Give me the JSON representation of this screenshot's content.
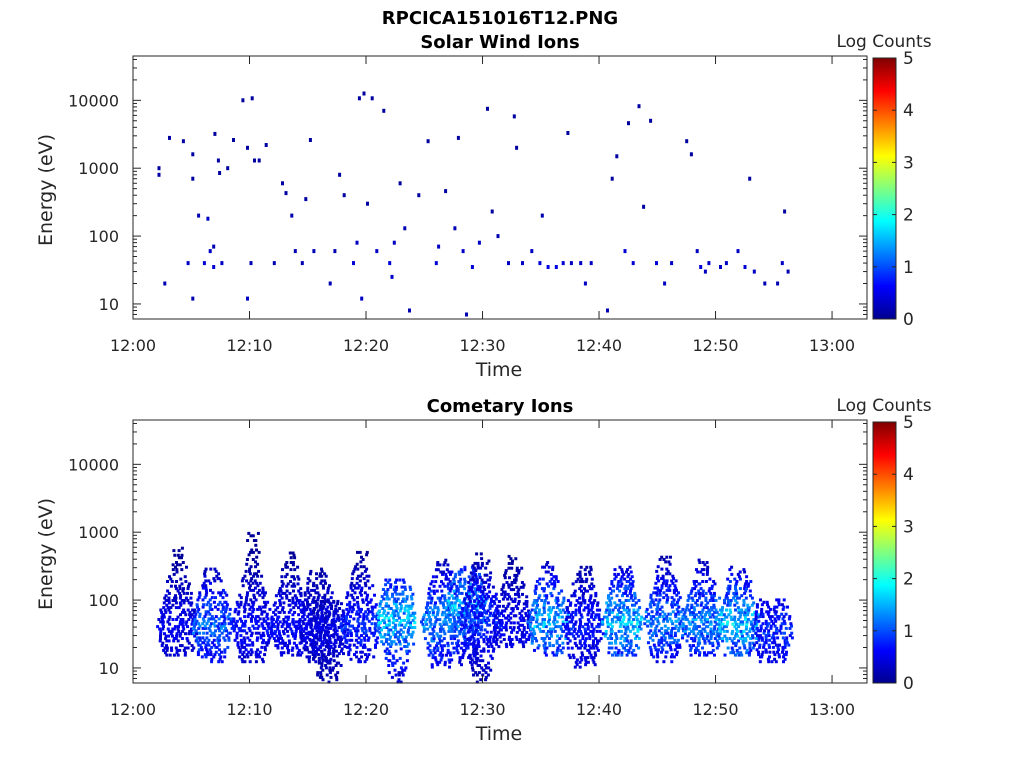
{
  "figure_title": "RPCICA151016T12.PNG",
  "colorbar": {
    "label": "Log Counts",
    "ticks": [
      "0",
      "1",
      "2",
      "3",
      "4",
      "5"
    ],
    "min": 0,
    "max": 5,
    "colormap": "jet",
    "colors": [
      "#00008f",
      "#0000ff",
      "#00ffff",
      "#ffff00",
      "#ff0000",
      "#800000"
    ]
  },
  "chart_data": [
    {
      "type": "heatmap",
      "title": "Solar Wind Ions",
      "xlabel": "Time",
      "ylabel": "Energy (eV)",
      "xticks": [
        "12:00",
        "12:10",
        "12:20",
        "12:30",
        "12:40",
        "12:50",
        "13:00"
      ],
      "yticks": [
        "10",
        "100",
        "1000",
        "10000"
      ],
      "xlim_minutes": [
        0,
        63
      ],
      "ylim": [
        6,
        45000
      ],
      "yscale": "log",
      "points": [
        [
          2.1,
          1000,
          0.1
        ],
        [
          2.1,
          800,
          0.1
        ],
        [
          2.6,
          20,
          0.2
        ],
        [
          3.0,
          2800,
          0.1
        ],
        [
          4.2,
          2500,
          0.1
        ],
        [
          4.6,
          40,
          0.3
        ],
        [
          5,
          1600,
          0.1
        ],
        [
          5,
          700,
          0.1
        ],
        [
          5,
          12,
          0.2
        ],
        [
          5.5,
          200,
          0.2
        ],
        [
          6.0,
          40,
          0.4
        ],
        [
          6.3,
          180,
          0.3
        ],
        [
          6.5,
          60,
          0.3
        ],
        [
          6.8,
          70,
          0.2
        ],
        [
          6.8,
          35,
          0.4
        ],
        [
          6.9,
          3200,
          0.1
        ],
        [
          7.2,
          1300,
          0.1
        ],
        [
          7.3,
          850,
          0.1
        ],
        [
          7.5,
          40,
          0.3
        ],
        [
          8.0,
          1000,
          0.1
        ],
        [
          8.5,
          2600,
          0.1
        ],
        [
          9.3,
          10000,
          0.1
        ],
        [
          9.7,
          12,
          0.3
        ],
        [
          9.7,
          2000,
          0.1
        ],
        [
          10.0,
          40,
          0.2
        ],
        [
          10.1,
          10700,
          0.1
        ],
        [
          10.3,
          1300,
          0.1
        ],
        [
          10.7,
          1300,
          0.1
        ],
        [
          11.3,
          2200,
          0.1
        ],
        [
          12.0,
          40,
          0.2
        ],
        [
          12.7,
          600,
          0.1
        ],
        [
          13.0,
          430,
          0.1
        ],
        [
          13.5,
          200,
          0.2
        ],
        [
          13.8,
          60,
          0.2
        ],
        [
          14.4,
          40,
          0.2
        ],
        [
          14.7,
          350,
          0.1
        ],
        [
          15.1,
          2600,
          0.1
        ],
        [
          15.4,
          60,
          0.2
        ],
        [
          16.8,
          20,
          0.2
        ],
        [
          17.2,
          60,
          0.2
        ],
        [
          17.6,
          800,
          0.1
        ],
        [
          18.0,
          400,
          0.1
        ],
        [
          18.8,
          40,
          0.4
        ],
        [
          19.1,
          80,
          0.3
        ],
        [
          19.3,
          10700,
          0.1
        ],
        [
          19.5,
          12,
          0.3
        ],
        [
          19.7,
          12600,
          0.1
        ],
        [
          20.0,
          300,
          0.1
        ],
        [
          20.4,
          10700,
          0.1
        ],
        [
          20.8,
          60,
          0.3
        ],
        [
          21.4,
          7000,
          0.1
        ],
        [
          21.9,
          40,
          0.4
        ],
        [
          22.1,
          25,
          0.3
        ],
        [
          22.3,
          80,
          0.3
        ],
        [
          22.8,
          600,
          0.1
        ],
        [
          23.2,
          130,
          0.2
        ],
        [
          23.6,
          8,
          0.2
        ],
        [
          24.4,
          400,
          0.1
        ],
        [
          25.2,
          2500,
          0.1
        ],
        [
          25.9,
          40,
          0.4
        ],
        [
          26.1,
          70,
          0.3
        ],
        [
          26.7,
          460,
          0.1
        ],
        [
          27.5,
          130,
          0.2
        ],
        [
          27.8,
          2800,
          0.1
        ],
        [
          28.2,
          60,
          0.3
        ],
        [
          28.5,
          7,
          0.2
        ],
        [
          29.0,
          35,
          0.4
        ],
        [
          29.6,
          80,
          0.3
        ],
        [
          30.3,
          7500,
          0.1
        ],
        [
          30.7,
          230,
          0.1
        ],
        [
          31.2,
          100,
          0.2
        ],
        [
          32.1,
          40,
          0.3
        ],
        [
          32.6,
          5800,
          0.1
        ],
        [
          32.8,
          2000,
          0.1
        ],
        [
          33.3,
          40,
          0.3
        ],
        [
          34.1,
          60,
          0.3
        ],
        [
          34.8,
          40,
          0.4
        ],
        [
          35.0,
          200,
          0.2
        ],
        [
          35.5,
          35,
          0.5
        ],
        [
          36.2,
          35,
          0.5
        ],
        [
          36.8,
          40,
          0.4
        ],
        [
          37.2,
          3300,
          0.1
        ],
        [
          37.5,
          40,
          0.3
        ],
        [
          38.3,
          40,
          0.3
        ],
        [
          38.7,
          20,
          0.3
        ],
        [
          39.2,
          40,
          0.3
        ],
        [
          40.6,
          8,
          0.2
        ],
        [
          41.0,
          700,
          0.1
        ],
        [
          41.4,
          1500,
          0.1
        ],
        [
          42.1,
          60,
          0.4
        ],
        [
          42.4,
          4600,
          0.1
        ],
        [
          42.8,
          40,
          0.4
        ],
        [
          43.3,
          8200,
          0.1
        ],
        [
          43.7,
          270,
          0.1
        ],
        [
          44.3,
          5000,
          0.1
        ],
        [
          44.8,
          40,
          0.4
        ],
        [
          45.5,
          20,
          0.3
        ],
        [
          46.1,
          40,
          0.3
        ],
        [
          47.4,
          2500,
          0.1
        ],
        [
          47.8,
          1600,
          0.1
        ],
        [
          48.3,
          60,
          0.3
        ],
        [
          48.6,
          35,
          0.4
        ],
        [
          49.0,
          30,
          0.3
        ],
        [
          49.3,
          40,
          0.3
        ],
        [
          50.3,
          35,
          0.3
        ],
        [
          50.8,
          40,
          0.3
        ],
        [
          51.8,
          60,
          0.3
        ],
        [
          52.4,
          35,
          0.4
        ],
        [
          52.8,
          700,
          0.1
        ],
        [
          53.2,
          30,
          0.3
        ],
        [
          54.1,
          20,
          0.2
        ],
        [
          55.2,
          20,
          0.2
        ],
        [
          55.6,
          40,
          0.3
        ],
        [
          55.8,
          230,
          0.1
        ],
        [
          56.1,
          30,
          0.2
        ]
      ]
    },
    {
      "type": "heatmap",
      "title": "Cometary Ions",
      "xlabel": "Time",
      "ylabel": "Energy (eV)",
      "xticks": [
        "12:00",
        "12:10",
        "12:20",
        "12:30",
        "12:40",
        "12:50",
        "13:00"
      ],
      "yticks": [
        "10",
        "100",
        "1000",
        "10000"
      ],
      "xlim_minutes": [
        0,
        63
      ],
      "ylim": [
        6,
        45000
      ],
      "yscale": "log",
      "bursts": [
        {
          "t": 3.8,
          "emin": 15,
          "emax": 600,
          "peak": 40,
          "level": 0.6
        },
        {
          "t": 6.8,
          "emin": 12,
          "emax": 300,
          "peak": 40,
          "level": 1.2
        },
        {
          "t": 10.2,
          "emin": 12,
          "emax": 1000,
          "peak": 40,
          "level": 0.7
        },
        {
          "t": 13.4,
          "emin": 15,
          "emax": 500,
          "peak": 40,
          "level": 0.7
        },
        {
          "t": 15.8,
          "emin": 12,
          "emax": 300,
          "peak": 40,
          "level": 0.6
        },
        {
          "t": 16.7,
          "emin": 6,
          "emax": 100,
          "peak": 30,
          "level": 0.5
        },
        {
          "t": 19.5,
          "emin": 12,
          "emax": 500,
          "peak": 40,
          "level": 0.9
        },
        {
          "t": 22.6,
          "emin": 6,
          "emax": 200,
          "peak": 50,
          "level": 1.7
        },
        {
          "t": 26.5,
          "emin": 10,
          "emax": 400,
          "peak": 45,
          "level": 1.4
        },
        {
          "t": 28.6,
          "emin": 10,
          "emax": 300,
          "peak": 80,
          "level": 1.6
        },
        {
          "t": 29.8,
          "emin": 6,
          "emax": 500,
          "peak": 50,
          "level": 0.9
        },
        {
          "t": 32.6,
          "emin": 20,
          "emax": 450,
          "peak": 40,
          "level": 0.6
        },
        {
          "t": 35.6,
          "emin": 15,
          "emax": 350,
          "peak": 45,
          "level": 1.6
        },
        {
          "t": 38.6,
          "emin": 10,
          "emax": 300,
          "peak": 40,
          "level": 0.8
        },
        {
          "t": 42.0,
          "emin": 15,
          "emax": 300,
          "peak": 45,
          "level": 1.7
        },
        {
          "t": 45.6,
          "emin": 12,
          "emax": 450,
          "peak": 45,
          "level": 1.3
        },
        {
          "t": 48.9,
          "emin": 15,
          "emax": 400,
          "peak": 45,
          "level": 1.4
        },
        {
          "t": 51.9,
          "emin": 15,
          "emax": 300,
          "peak": 45,
          "level": 1.7
        },
        {
          "t": 54.8,
          "emin": 12,
          "emax": 100,
          "peak": 35,
          "level": 0.9
        }
      ]
    }
  ]
}
